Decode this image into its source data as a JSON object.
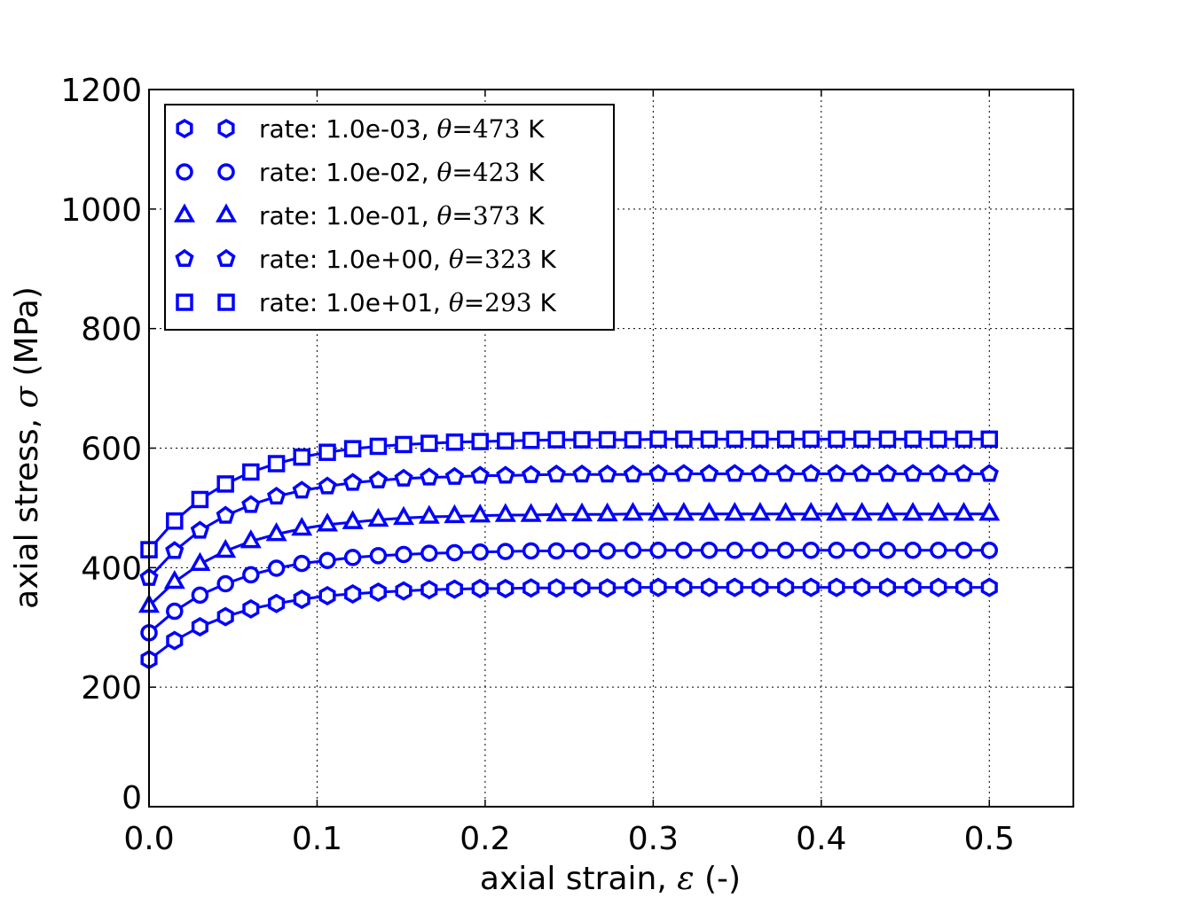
{
  "chart_data": {
    "type": "line",
    "title": "",
    "xlabel": "axial strain, ε (-)",
    "xlabel_parts": {
      "pre": "axial strain, ",
      "sym": "ε",
      "post": " (-)"
    },
    "ylabel": "axial stress, σ (MPa)",
    "ylabel_parts": {
      "pre": "axial stress, ",
      "sym": "σ",
      "post": " (MPa)"
    },
    "xlim": [
      0,
      0.55
    ],
    "ylim": [
      0,
      1200
    ],
    "xticks": [
      "0.0",
      "0.1",
      "0.2",
      "0.3",
      "0.4",
      "0.5"
    ],
    "xtick_values": [
      0,
      0.1,
      0.2,
      0.3,
      0.4,
      0.5
    ],
    "yticks": [
      "0",
      "200",
      "400",
      "600",
      "800",
      "1000",
      "1200"
    ],
    "ytick_values": [
      0,
      200,
      400,
      600,
      800,
      1000,
      1200
    ],
    "grid": true,
    "legend_placement": "upper-left",
    "color": "#0000ff",
    "x": [
      0,
      0.0152,
      0.0303,
      0.0455,
      0.0606,
      0.0758,
      0.0909,
      0.1061,
      0.1212,
      0.1364,
      0.1515,
      0.1667,
      0.1818,
      0.197,
      0.2121,
      0.2273,
      0.2424,
      0.2576,
      0.2727,
      0.2879,
      0.303,
      0.3182,
      0.3333,
      0.3485,
      0.3636,
      0.3788,
      0.3939,
      0.4091,
      0.4242,
      0.4394,
      0.4545,
      0.4697,
      0.4848,
      0.5
    ],
    "series": [
      {
        "name": "rate: 1.0e-03, θ=473 K",
        "rate": "rate: 1.0e-03,",
        "theta": "θ",
        "temp": "=473",
        "unit": "K",
        "marker": "hexagon",
        "values": [
          246,
          278,
          301,
          318,
          331,
          340,
          347,
          353,
          356,
          359,
          361,
          363,
          364,
          365,
          365,
          366,
          366,
          366,
          366,
          367,
          367,
          367,
          367,
          367,
          367,
          367,
          367,
          367,
          367,
          367,
          367,
          367,
          367,
          367
        ]
      },
      {
        "name": "rate: 1.0e-02, θ=423 K",
        "rate": "rate: 1.0e-02,",
        "theta": "θ",
        "temp": "=423",
        "unit": "K",
        "marker": "circle",
        "values": [
          291,
          327,
          354,
          373,
          388,
          399,
          407,
          412,
          417,
          420,
          422,
          424,
          425,
          426,
          427,
          428,
          428,
          428,
          428,
          429,
          429,
          429,
          429,
          429,
          429,
          429,
          429,
          429,
          429,
          429,
          429,
          429,
          429,
          429
        ]
      },
      {
        "name": "rate: 1.0e-01, θ=373 K",
        "rate": "rate: 1.0e-01,",
        "theta": "θ",
        "temp": "=373",
        "unit": "K",
        "marker": "triangle",
        "values": [
          336,
          376,
          406,
          428,
          444,
          456,
          465,
          472,
          476,
          480,
          483,
          485,
          486,
          487,
          488,
          488,
          489,
          489,
          489,
          490,
          490,
          490,
          490,
          490,
          490,
          490,
          490,
          490,
          490,
          490,
          490,
          490,
          490,
          490
        ]
      },
      {
        "name": "rate: 1.0e+00, θ=323 K",
        "rate": "rate: 1.0e+00,",
        "theta": "θ",
        "temp": "=323",
        "unit": "K",
        "marker": "pentagon",
        "values": [
          383,
          428,
          462,
          487,
          505,
          519,
          529,
          536,
          542,
          546,
          549,
          551,
          552,
          554,
          554,
          555,
          556,
          556,
          556,
          556,
          557,
          557,
          557,
          557,
          557,
          557,
          557,
          557,
          557,
          557,
          557,
          557,
          557,
          557
        ]
      },
      {
        "name": "rate: 1.0e+01, θ=293 K",
        "rate": "rate: 1.0e+01,",
        "theta": "θ",
        "temp": "=293",
        "unit": "K",
        "marker": "square",
        "values": [
          430,
          478,
          514,
          540,
          560,
          574,
          585,
          593,
          599,
          603,
          606,
          608,
          610,
          611,
          612,
          613,
          614,
          614,
          614,
          614,
          615,
          615,
          615,
          615,
          615,
          615,
          615,
          615,
          615,
          615,
          615,
          615,
          615,
          615
        ]
      }
    ]
  }
}
